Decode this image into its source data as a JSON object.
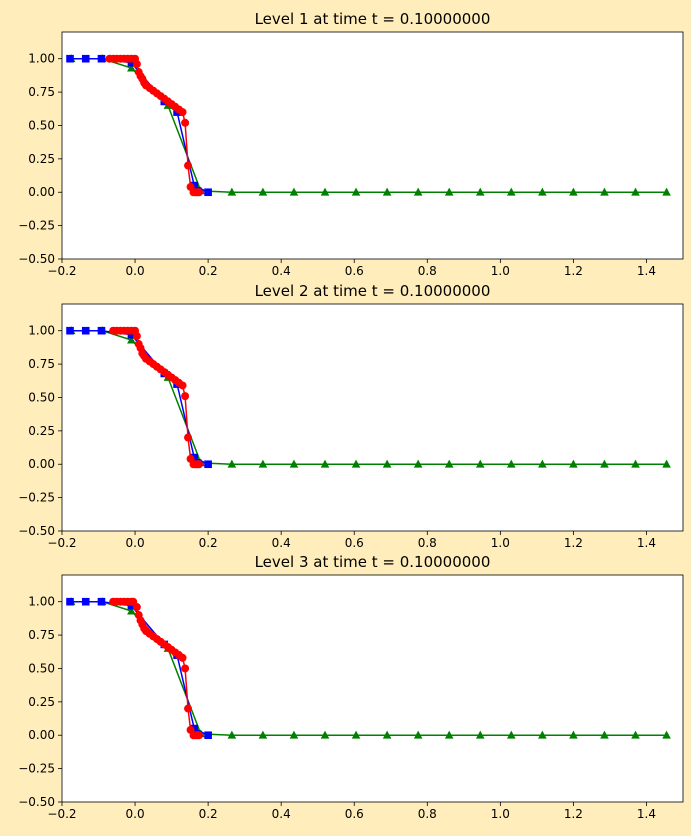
{
  "figure": {
    "background": "#FFEEBB"
  },
  "chart_data": [
    {
      "type": "line",
      "title": "Level 1 at time t =      0.10000000",
      "xlim": [
        -0.2,
        1.5
      ],
      "ylim": [
        -0.5,
        1.2
      ],
      "xticks": [
        "−0.2",
        "0.0",
        "0.2",
        "0.4",
        "0.6",
        "0.8",
        "1.0",
        "1.2",
        "1.4"
      ],
      "yticks": [
        "−0.50",
        "−0.25",
        "0.00",
        "0.25",
        "0.50",
        "0.75",
        "1.00"
      ],
      "grid": false,
      "legend": "none",
      "series": [
        {
          "color": "#008000",
          "marker": "triangle",
          "x": [
            -0.175,
            -0.09,
            -0.01,
            0.09,
            0.18,
            0.265,
            0.35,
            0.435,
            0.52,
            0.605,
            0.69,
            0.775,
            0.86,
            0.945,
            1.03,
            1.115,
            1.2,
            1.285,
            1.37,
            1.455
          ],
          "y": [
            1.0,
            1.0,
            0.93,
            0.65,
            0.01,
            0.0,
            0.0,
            0.0,
            0.0,
            0.0,
            0.0,
            0.0,
            0.0,
            0.0,
            0.0,
            0.0,
            0.0,
            0.0,
            0.0,
            0.0
          ]
        },
        {
          "color": "#0000FF",
          "marker": "square",
          "x": [
            -0.178,
            -0.135,
            -0.092,
            -0.01,
            0.08,
            0.115,
            0.162,
            0.2
          ],
          "y": [
            1.0,
            1.0,
            1.0,
            0.97,
            0.68,
            0.6,
            0.05,
            0.0
          ]
        },
        {
          "color": "#FF0000",
          "marker": "circle",
          "x": [
            -0.07,
            -0.06,
            -0.05,
            -0.04,
            -0.03,
            -0.02,
            -0.01,
            0.0,
            0.005,
            0.01,
            0.015,
            0.02,
            0.025,
            0.03,
            0.04,
            0.05,
            0.06,
            0.07,
            0.08,
            0.09,
            0.1,
            0.11,
            0.12,
            0.13,
            0.137,
            0.145,
            0.152,
            0.16,
            0.165,
            0.17,
            0.175
          ],
          "y": [
            1.0,
            1.0,
            1.0,
            1.0,
            1.0,
            1.0,
            1.0,
            1.0,
            0.96,
            0.9,
            0.87,
            0.85,
            0.82,
            0.8,
            0.78,
            0.76,
            0.74,
            0.72,
            0.7,
            0.68,
            0.66,
            0.64,
            0.62,
            0.6,
            0.52,
            0.2,
            0.04,
            0.0,
            0.0,
            0.0,
            0.0
          ]
        }
      ]
    },
    {
      "type": "line",
      "title": "Level 2 at time t =      0.10000000",
      "xlim": [
        -0.2,
        1.5
      ],
      "ylim": [
        -0.5,
        1.2
      ],
      "xticks": [
        "−0.2",
        "0.0",
        "0.2",
        "0.4",
        "0.6",
        "0.8",
        "1.0",
        "1.2",
        "1.4"
      ],
      "yticks": [
        "−0.50",
        "−0.25",
        "0.00",
        "0.25",
        "0.50",
        "0.75",
        "1.00"
      ],
      "grid": false,
      "legend": "none",
      "series": [
        {
          "color": "#008000",
          "marker": "triangle",
          "x": [
            -0.175,
            -0.09,
            -0.01,
            0.09,
            0.18,
            0.265,
            0.35,
            0.435,
            0.52,
            0.605,
            0.69,
            0.775,
            0.86,
            0.945,
            1.03,
            1.115,
            1.2,
            1.285,
            1.37,
            1.455
          ],
          "y": [
            1.0,
            1.0,
            0.93,
            0.65,
            0.01,
            0.0,
            0.0,
            0.0,
            0.0,
            0.0,
            0.0,
            0.0,
            0.0,
            0.0,
            0.0,
            0.0,
            0.0,
            0.0,
            0.0,
            0.0
          ]
        },
        {
          "color": "#0000FF",
          "marker": "square",
          "x": [
            -0.178,
            -0.135,
            -0.092,
            -0.01,
            0.08,
            0.115,
            0.162,
            0.2
          ],
          "y": [
            1.0,
            1.0,
            1.0,
            0.97,
            0.68,
            0.6,
            0.05,
            0.0
          ]
        },
        {
          "color": "#FF0000",
          "marker": "circle",
          "x": [
            -0.06,
            -0.05,
            -0.04,
            -0.03,
            -0.02,
            -0.01,
            0.0,
            0.005,
            0.01,
            0.015,
            0.02,
            0.025,
            0.03,
            0.04,
            0.05,
            0.06,
            0.07,
            0.08,
            0.09,
            0.1,
            0.11,
            0.12,
            0.13,
            0.137,
            0.145,
            0.152,
            0.16,
            0.165,
            0.17,
            0.175
          ],
          "y": [
            1.0,
            1.0,
            1.0,
            1.0,
            1.0,
            1.0,
            1.0,
            0.96,
            0.9,
            0.87,
            0.83,
            0.81,
            0.79,
            0.77,
            0.75,
            0.73,
            0.71,
            0.69,
            0.67,
            0.65,
            0.63,
            0.61,
            0.59,
            0.51,
            0.2,
            0.04,
            0.0,
            0.0,
            0.0,
            0.0
          ]
        }
      ]
    },
    {
      "type": "line",
      "title": "Level 3 at time t =      0.10000000",
      "xlim": [
        -0.2,
        1.5
      ],
      "ylim": [
        -0.5,
        1.2
      ],
      "xticks": [
        "−0.2",
        "0.0",
        "0.2",
        "0.4",
        "0.6",
        "0.8",
        "1.0",
        "1.2",
        "1.4"
      ],
      "yticks": [
        "−0.50",
        "−0.25",
        "0.00",
        "0.25",
        "0.50",
        "0.75",
        "1.00"
      ],
      "grid": false,
      "legend": "none",
      "series": [
        {
          "color": "#008000",
          "marker": "triangle",
          "x": [
            -0.175,
            -0.09,
            -0.01,
            0.09,
            0.18,
            0.265,
            0.35,
            0.435,
            0.52,
            0.605,
            0.69,
            0.775,
            0.86,
            0.945,
            1.03,
            1.115,
            1.2,
            1.285,
            1.37,
            1.455
          ],
          "y": [
            1.0,
            1.0,
            0.93,
            0.65,
            0.01,
            0.0,
            0.0,
            0.0,
            0.0,
            0.0,
            0.0,
            0.0,
            0.0,
            0.0,
            0.0,
            0.0,
            0.0,
            0.0,
            0.0,
            0.0
          ]
        },
        {
          "color": "#0000FF",
          "marker": "square",
          "x": [
            -0.178,
            -0.135,
            -0.092,
            -0.01,
            0.08,
            0.115,
            0.162,
            0.2
          ],
          "y": [
            1.0,
            1.0,
            1.0,
            0.97,
            0.68,
            0.6,
            0.05,
            0.0
          ]
        },
        {
          "color": "#FF0000",
          "marker": "circle",
          "x": [
            -0.06,
            -0.05,
            -0.04,
            -0.03,
            -0.02,
            -0.01,
            -0.005,
            0.005,
            0.01,
            0.015,
            0.02,
            0.025,
            0.03,
            0.04,
            0.05,
            0.06,
            0.07,
            0.08,
            0.09,
            0.1,
            0.11,
            0.12,
            0.13,
            0.137,
            0.145,
            0.152,
            0.16,
            0.165,
            0.17,
            0.175
          ],
          "y": [
            1.0,
            1.0,
            1.0,
            1.0,
            1.0,
            1.0,
            1.0,
            0.96,
            0.9,
            0.86,
            0.83,
            0.8,
            0.78,
            0.76,
            0.74,
            0.72,
            0.7,
            0.68,
            0.66,
            0.64,
            0.62,
            0.6,
            0.58,
            0.5,
            0.2,
            0.04,
            0.0,
            0.0,
            0.0,
            0.0
          ]
        }
      ]
    }
  ]
}
